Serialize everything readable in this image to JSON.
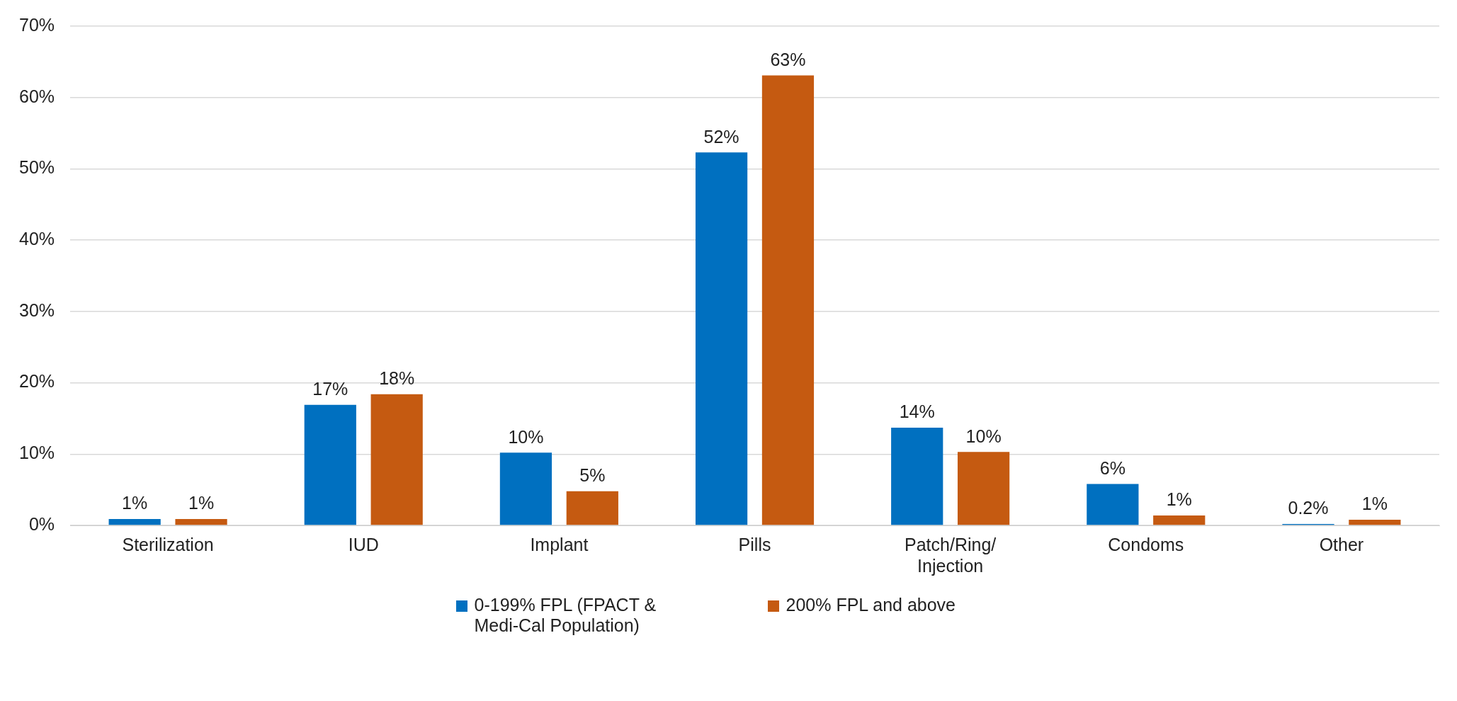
{
  "chart_data": {
    "type": "bar",
    "categories": [
      "Sterilization",
      "IUD",
      "Implant",
      "Pills",
      "Patch/Ring/ Injection",
      "Condoms",
      "Other"
    ],
    "series": [
      {
        "name": "0-199% FPL (FPACT & Medi-Cal Population)",
        "color": "#0070c0",
        "values": [
          0.9,
          16.9,
          10.2,
          52.3,
          13.7,
          5.8,
          0.2
        ],
        "value_labels": [
          "1%",
          "17%",
          "10%",
          "52%",
          "14%",
          "6%",
          "0.2%"
        ]
      },
      {
        "name": "200% FPL and above",
        "color": "#c55a11",
        "values": [
          0.9,
          18.4,
          4.8,
          63.1,
          10.3,
          1.4,
          0.8
        ],
        "value_labels": [
          "1%",
          "18%",
          "5%",
          "63%",
          "10%",
          "1%",
          "1%"
        ]
      }
    ],
    "ylim": [
      0,
      70
    ],
    "yticks": [
      {
        "value": 0,
        "label": "0%"
      },
      {
        "value": 10,
        "label": "10%"
      },
      {
        "value": 20,
        "label": "20%"
      },
      {
        "value": 30,
        "label": "30%"
      },
      {
        "value": 40,
        "label": "40%"
      },
      {
        "value": 50,
        "label": "50%"
      },
      {
        "value": 60,
        "label": "60%"
      },
      {
        "value": 70,
        "label": "70%"
      }
    ],
    "grid": "y",
    "legend": "bottom"
  }
}
